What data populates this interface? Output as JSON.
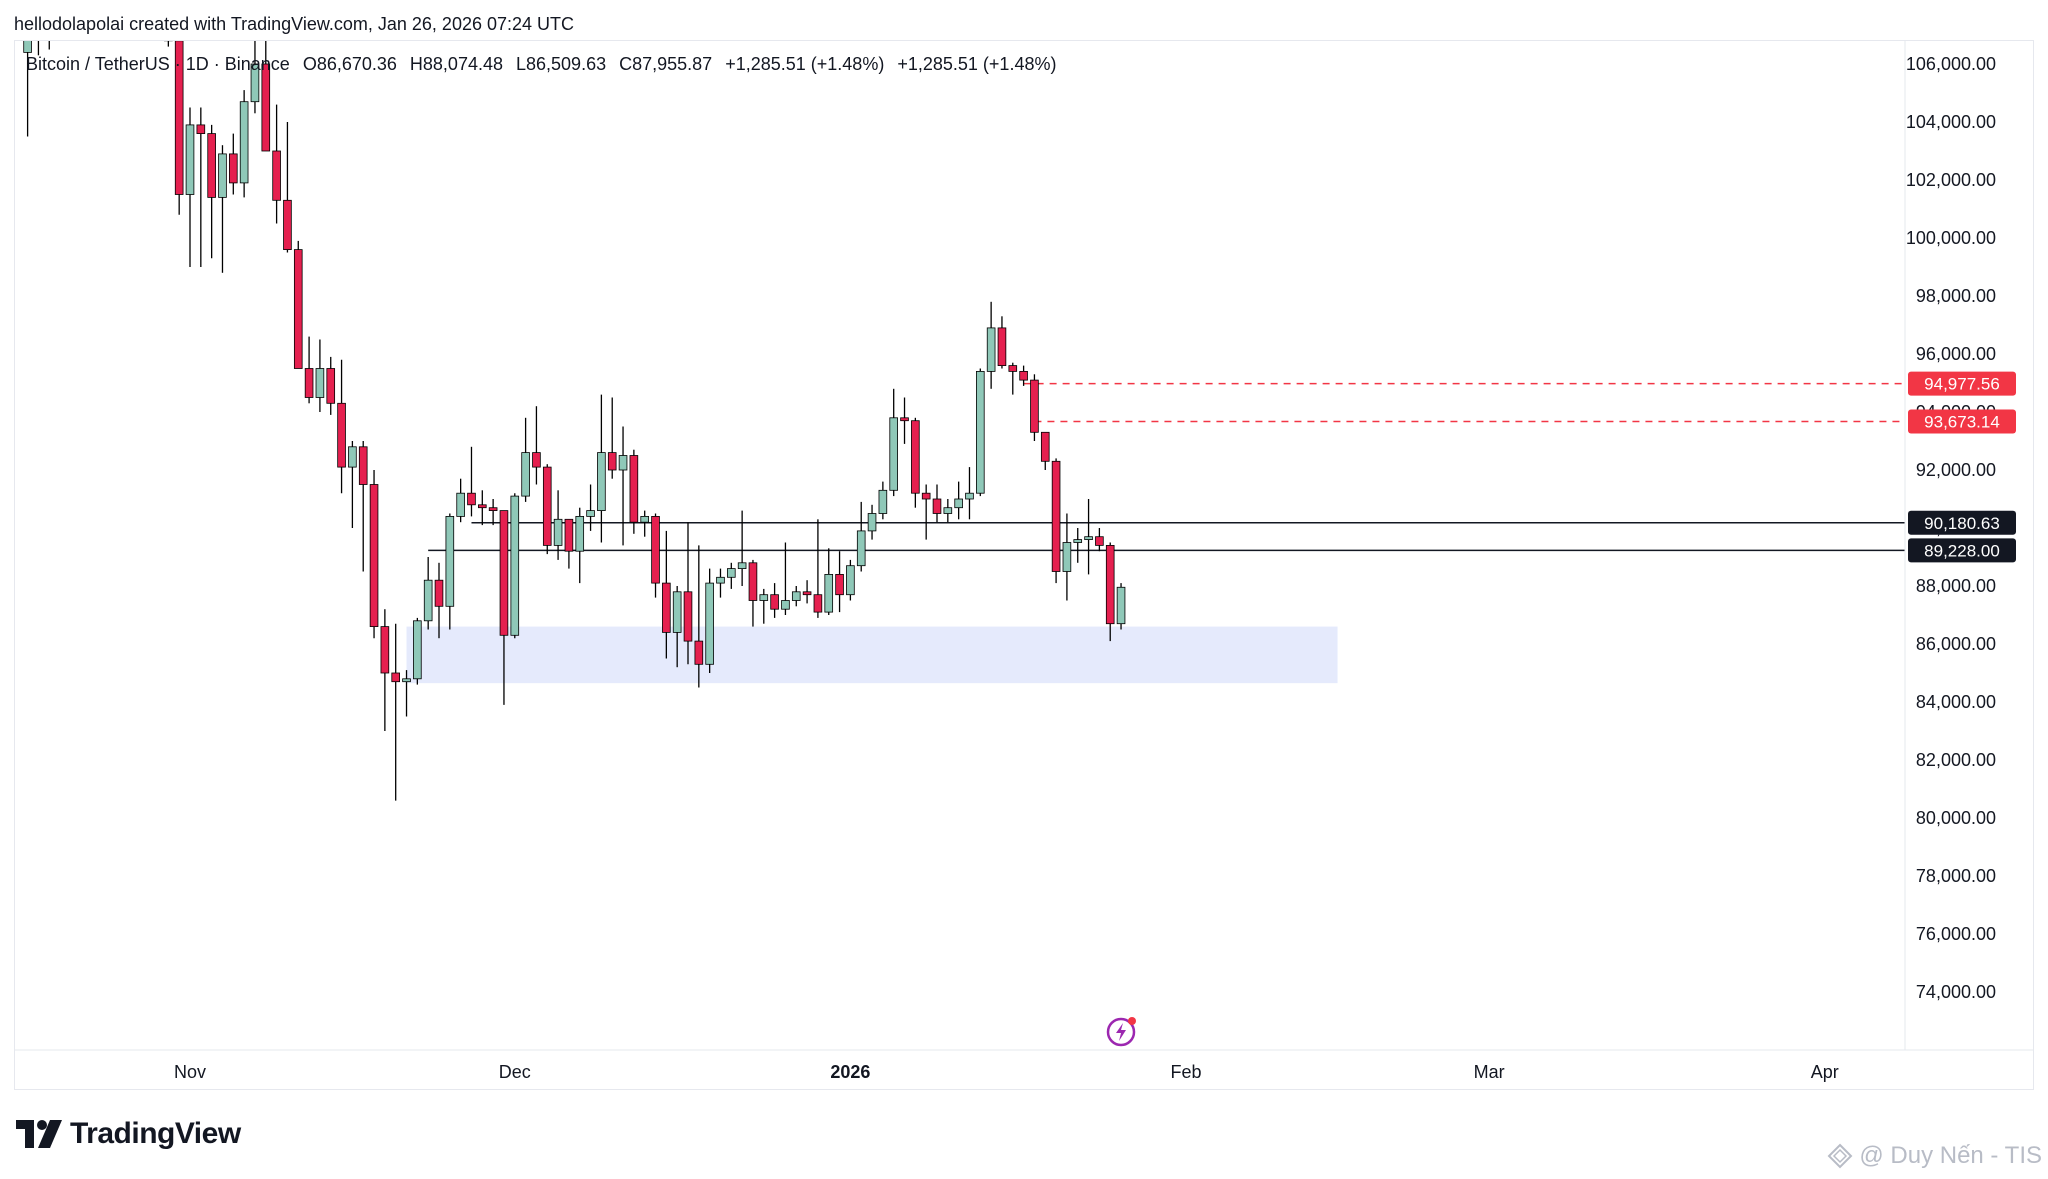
{
  "credit": "hellodolapolai created with TradingView.com, Jan 26, 2026 07:24 UTC",
  "legend": {
    "symbol": "Bitcoin / TetherUS · 1D · Binance",
    "open": "O86,670.36",
    "high": "H88,074.48",
    "low": "L86,509.63",
    "close": "C87,955.87",
    "change1": "+1,285.51 (+1.48%)",
    "change2": "+1,285.51 (+1.48%)"
  },
  "brand": "TradingView",
  "watermark": "@ Duy Nến - TIS",
  "icons": {
    "flash": "flash-icon",
    "logo": "tradingview-logo-icon",
    "watermark": "diamond-icon"
  },
  "colors": {
    "up": "#8fc8b8",
    "down": "#e5204f",
    "zone": "#e1e6fc",
    "level": "#131722",
    "dash": "#f23645"
  },
  "chart_data": {
    "type": "candlestick",
    "interval": "1D",
    "ylim": [
      72500,
      107500
    ],
    "yticks": [
      "106,000.00",
      "104,000.00",
      "102,000.00",
      "100,000.00",
      "98,000.00",
      "96,000.00",
      "94,000.00",
      "92,000.00",
      "90,000.00",
      "88,000.00",
      "86,000.00",
      "84,000.00",
      "82,000.00",
      "80,000.00",
      "78,000.00",
      "76,000.00",
      "74,000.00"
    ],
    "ytick_values": [
      106000,
      104000,
      102000,
      100000,
      98000,
      96000,
      94000,
      92000,
      90000,
      88000,
      86000,
      84000,
      82000,
      80000,
      78000,
      76000,
      74000
    ],
    "xticks": [
      {
        "label": "Nov",
        "date": "2025-11-01",
        "bold": false
      },
      {
        "label": "Dec",
        "date": "2025-12-01",
        "bold": false
      },
      {
        "label": "2026",
        "date": "2026-01-01",
        "bold": true
      },
      {
        "label": "Feb",
        "date": "2026-02-01",
        "bold": false
      },
      {
        "label": "Mar",
        "date": "2026-03-01",
        "bold": false
      },
      {
        "label": "Apr",
        "date": "2026-04-01",
        "bold": false
      }
    ],
    "candles": [
      {
        "date": "2025-10-17",
        "o": 106400,
        "h": 107500,
        "l": 103500,
        "c": 107200
      },
      {
        "date": "2025-10-18",
        "o": 107100,
        "h": 107500,
        "l": 106300,
        "c": 107400
      },
      {
        "date": "2025-10-19",
        "o": 107300,
        "h": 107500,
        "l": 106500,
        "c": 106900
      },
      {
        "date": "2025-10-30",
        "o": 107200,
        "h": 107500,
        "l": 106600,
        "c": 106800
      },
      {
        "date": "2025-10-31",
        "o": 106800,
        "h": 107500,
        "l": 100800,
        "c": 101500
      },
      {
        "date": "2025-11-01",
        "o": 101500,
        "h": 104500,
        "l": 99000,
        "c": 103900
      },
      {
        "date": "2025-11-02",
        "o": 103900,
        "h": 104500,
        "l": 99000,
        "c": 103600
      },
      {
        "date": "2025-11-03",
        "o": 103600,
        "h": 103900,
        "l": 99300,
        "c": 101400
      },
      {
        "date": "2025-11-04",
        "o": 101400,
        "h": 103200,
        "l": 98800,
        "c": 102900
      },
      {
        "date": "2025-11-05",
        "o": 102900,
        "h": 103600,
        "l": 101500,
        "c": 101900
      },
      {
        "date": "2025-11-06",
        "o": 101900,
        "h": 105100,
        "l": 101400,
        "c": 104700
      },
      {
        "date": "2025-11-07",
        "o": 104700,
        "h": 107000,
        "l": 104300,
        "c": 106000
      },
      {
        "date": "2025-11-08",
        "o": 106000,
        "h": 107000,
        "l": 103000,
        "c": 103000
      },
      {
        "date": "2025-11-09",
        "o": 103000,
        "h": 104600,
        "l": 100500,
        "c": 101300
      },
      {
        "date": "2025-11-10",
        "o": 101300,
        "h": 104000,
        "l": 99500,
        "c": 99600
      },
      {
        "date": "2025-11-11",
        "o": 99600,
        "h": 99900,
        "l": 95500,
        "c": 95500
      },
      {
        "date": "2025-11-12",
        "o": 95500,
        "h": 96600,
        "l": 94300,
        "c": 94500
      },
      {
        "date": "2025-11-13",
        "o": 94500,
        "h": 96500,
        "l": 94000,
        "c": 95500
      },
      {
        "date": "2025-11-14",
        "o": 95500,
        "h": 95900,
        "l": 93900,
        "c": 94300
      },
      {
        "date": "2025-11-15",
        "o": 94300,
        "h": 95800,
        "l": 91200,
        "c": 92100
      },
      {
        "date": "2025-11-16",
        "o": 92100,
        "h": 93000,
        "l": 90000,
        "c": 92800
      },
      {
        "date": "2025-11-17",
        "o": 92800,
        "h": 93000,
        "l": 88500,
        "c": 91500
      },
      {
        "date": "2025-11-18",
        "o": 91500,
        "h": 92000,
        "l": 86200,
        "c": 86600
      },
      {
        "date": "2025-11-19",
        "o": 86600,
        "h": 87200,
        "l": 83000,
        "c": 85000
      },
      {
        "date": "2025-11-20",
        "o": 85000,
        "h": 86700,
        "l": 80600,
        "c": 84700
      },
      {
        "date": "2025-11-21",
        "o": 84700,
        "h": 85100,
        "l": 83500,
        "c": 84800
      },
      {
        "date": "2025-11-22",
        "o": 84800,
        "h": 86900,
        "l": 84600,
        "c": 86800
      },
      {
        "date": "2025-11-23",
        "o": 86800,
        "h": 89000,
        "l": 86500,
        "c": 88200
      },
      {
        "date": "2025-11-24",
        "o": 88200,
        "h": 88800,
        "l": 86200,
        "c": 87300
      },
      {
        "date": "2025-11-25",
        "o": 87300,
        "h": 90500,
        "l": 86500,
        "c": 90400
      },
      {
        "date": "2025-11-26",
        "o": 90400,
        "h": 91700,
        "l": 90200,
        "c": 91200
      },
      {
        "date": "2025-11-27",
        "o": 91200,
        "h": 92800,
        "l": 90400,
        "c": 90800
      },
      {
        "date": "2025-11-28",
        "o": 90800,
        "h": 91300,
        "l": 90100,
        "c": 90700
      },
      {
        "date": "2025-11-29",
        "o": 90700,
        "h": 91000,
        "l": 90100,
        "c": 90600
      },
      {
        "date": "2025-11-30",
        "o": 90600,
        "h": 90600,
        "l": 83900,
        "c": 86300
      },
      {
        "date": "2025-12-01",
        "o": 86300,
        "h": 91200,
        "l": 86200,
        "c": 91100
      },
      {
        "date": "2025-12-02",
        "o": 91100,
        "h": 93800,
        "l": 90900,
        "c": 92600
      },
      {
        "date": "2025-12-03",
        "o": 92600,
        "h": 94200,
        "l": 91500,
        "c": 92100
      },
      {
        "date": "2025-12-04",
        "o": 92100,
        "h": 92200,
        "l": 89100,
        "c": 89400
      },
      {
        "date": "2025-12-05",
        "o": 89400,
        "h": 91300,
        "l": 88900,
        "c": 90300
      },
      {
        "date": "2025-12-06",
        "o": 90300,
        "h": 90300,
        "l": 88600,
        "c": 89200
      },
      {
        "date": "2025-12-07",
        "o": 89200,
        "h": 90700,
        "l": 88100,
        "c": 90400
      },
      {
        "date": "2025-12-08",
        "o": 90400,
        "h": 91500,
        "l": 89900,
        "c": 90600
      },
      {
        "date": "2025-12-09",
        "o": 90600,
        "h": 94600,
        "l": 89500,
        "c": 92600
      },
      {
        "date": "2025-12-10",
        "o": 92600,
        "h": 94500,
        "l": 91700,
        "c": 92000
      },
      {
        "date": "2025-12-11",
        "o": 92000,
        "h": 93500,
        "l": 89400,
        "c": 92500
      },
      {
        "date": "2025-12-12",
        "o": 92500,
        "h": 92700,
        "l": 89800,
        "c": 90200
      },
      {
        "date": "2025-12-13",
        "o": 90200,
        "h": 90600,
        "l": 89700,
        "c": 90400
      },
      {
        "date": "2025-12-14",
        "o": 90400,
        "h": 90500,
        "l": 87600,
        "c": 88100
      },
      {
        "date": "2025-12-15",
        "o": 88100,
        "h": 89900,
        "l": 85500,
        "c": 86400
      },
      {
        "date": "2025-12-16",
        "o": 86400,
        "h": 88000,
        "l": 85200,
        "c": 87800
      },
      {
        "date": "2025-12-17",
        "o": 87800,
        "h": 90200,
        "l": 85300,
        "c": 86100
      },
      {
        "date": "2025-12-18",
        "o": 86100,
        "h": 89400,
        "l": 84500,
        "c": 85300
      },
      {
        "date": "2025-12-19",
        "o": 85300,
        "h": 88600,
        "l": 85000,
        "c": 88100
      },
      {
        "date": "2025-12-20",
        "o": 88100,
        "h": 88600,
        "l": 87600,
        "c": 88300
      },
      {
        "date": "2025-12-21",
        "o": 88300,
        "h": 88800,
        "l": 87900,
        "c": 88600
      },
      {
        "date": "2025-12-22",
        "o": 88600,
        "h": 90600,
        "l": 88000,
        "c": 88800
      },
      {
        "date": "2025-12-23",
        "o": 88800,
        "h": 88900,
        "l": 86600,
        "c": 87500
      },
      {
        "date": "2025-12-24",
        "o": 87500,
        "h": 87900,
        "l": 86700,
        "c": 87700
      },
      {
        "date": "2025-12-25",
        "o": 87700,
        "h": 88100,
        "l": 86900,
        "c": 87200
      },
      {
        "date": "2025-12-26",
        "o": 87200,
        "h": 89500,
        "l": 87000,
        "c": 87500
      },
      {
        "date": "2025-12-27",
        "o": 87500,
        "h": 88000,
        "l": 87300,
        "c": 87800
      },
      {
        "date": "2025-12-28",
        "o": 87800,
        "h": 88200,
        "l": 87400,
        "c": 87700
      },
      {
        "date": "2025-12-29",
        "o": 87700,
        "h": 90300,
        "l": 86900,
        "c": 87100
      },
      {
        "date": "2025-12-30",
        "o": 87100,
        "h": 89300,
        "l": 87000,
        "c": 88400
      },
      {
        "date": "2025-12-31",
        "o": 88400,
        "h": 89200,
        "l": 87100,
        "c": 87700
      },
      {
        "date": "2026-01-01",
        "o": 87700,
        "h": 88900,
        "l": 87500,
        "c": 88700
      },
      {
        "date": "2026-01-02",
        "o": 88700,
        "h": 90900,
        "l": 88500,
        "c": 89900
      },
      {
        "date": "2026-01-03",
        "o": 89900,
        "h": 90800,
        "l": 89600,
        "c": 90500
      },
      {
        "date": "2026-01-04",
        "o": 90500,
        "h": 91600,
        "l": 90300,
        "c": 91300
      },
      {
        "date": "2026-01-05",
        "o": 91300,
        "h": 94800,
        "l": 91100,
        "c": 93800
      },
      {
        "date": "2026-01-06",
        "o": 93800,
        "h": 94500,
        "l": 92900,
        "c": 93700
      },
      {
        "date": "2026-01-07",
        "o": 93700,
        "h": 93800,
        "l": 90700,
        "c": 91200
      },
      {
        "date": "2026-01-08",
        "o": 91200,
        "h": 91500,
        "l": 89600,
        "c": 91000
      },
      {
        "date": "2026-01-09",
        "o": 91000,
        "h": 91500,
        "l": 90200,
        "c": 90500
      },
      {
        "date": "2026-01-10",
        "o": 90500,
        "h": 91000,
        "l": 90200,
        "c": 90700
      },
      {
        "date": "2026-01-11",
        "o": 90700,
        "h": 91600,
        "l": 90300,
        "c": 91000
      },
      {
        "date": "2026-01-12",
        "o": 91000,
        "h": 92100,
        "l": 90300,
        "c": 91200
      },
      {
        "date": "2026-01-13",
        "o": 91200,
        "h": 95500,
        "l": 91100,
        "c": 95400
      },
      {
        "date": "2026-01-14",
        "o": 95400,
        "h": 97800,
        "l": 94800,
        "c": 96900
      },
      {
        "date": "2026-01-15",
        "o": 96900,
        "h": 97300,
        "l": 95500,
        "c": 95600
      },
      {
        "date": "2026-01-16",
        "o": 95600,
        "h": 95700,
        "l": 94600,
        "c": 95400
      },
      {
        "date": "2026-01-17",
        "o": 95400,
        "h": 95600,
        "l": 94900,
        "c": 95100
      },
      {
        "date": "2026-01-18",
        "o": 95100,
        "h": 95300,
        "l": 93000,
        "c": 93300
      },
      {
        "date": "2026-01-19",
        "o": 93300,
        "h": 93300,
        "l": 92000,
        "c": 92300
      },
      {
        "date": "2026-01-20",
        "o": 92300,
        "h": 92400,
        "l": 88100,
        "c": 88500
      },
      {
        "date": "2026-01-21",
        "o": 88500,
        "h": 90500,
        "l": 87500,
        "c": 89500
      },
      {
        "date": "2026-01-22",
        "o": 89500,
        "h": 90000,
        "l": 88800,
        "c": 89600
      },
      {
        "date": "2026-01-23",
        "o": 89600,
        "h": 91000,
        "l": 88400,
        "c": 89700
      },
      {
        "date": "2026-01-24",
        "o": 89700,
        "h": 90000,
        "l": 89200,
        "c": 89400
      },
      {
        "date": "2026-01-25",
        "o": 89400,
        "h": 89500,
        "l": 86100,
        "c": 86700
      },
      {
        "date": "2026-01-26",
        "o": 86700,
        "h": 88100,
        "l": 86500,
        "c": 87956
      }
    ],
    "hlines": [
      {
        "price": 94977.56,
        "label": "94,977.56",
        "style": "dashed",
        "color": "#f23645",
        "start_date": "2026-01-17"
      },
      {
        "price": 93673.14,
        "label": "93,673.14",
        "style": "dashed",
        "color": "#f23645",
        "start_date": "2026-01-18"
      },
      {
        "price": 90180.63,
        "label": "90,180.63",
        "style": "solid",
        "color": "#131722",
        "start_date": "2025-11-27"
      },
      {
        "price": 89228.0,
        "label": "89,228.00",
        "style": "solid",
        "color": "#131722",
        "start_date": "2025-11-23"
      }
    ],
    "zone": {
      "x0_date": "2025-11-21",
      "x1_date": "2026-02-15",
      "y_low": 84650,
      "y_high": 86600,
      "color": "#e1e6fc"
    },
    "grid": false,
    "legend_position": "top-left"
  }
}
